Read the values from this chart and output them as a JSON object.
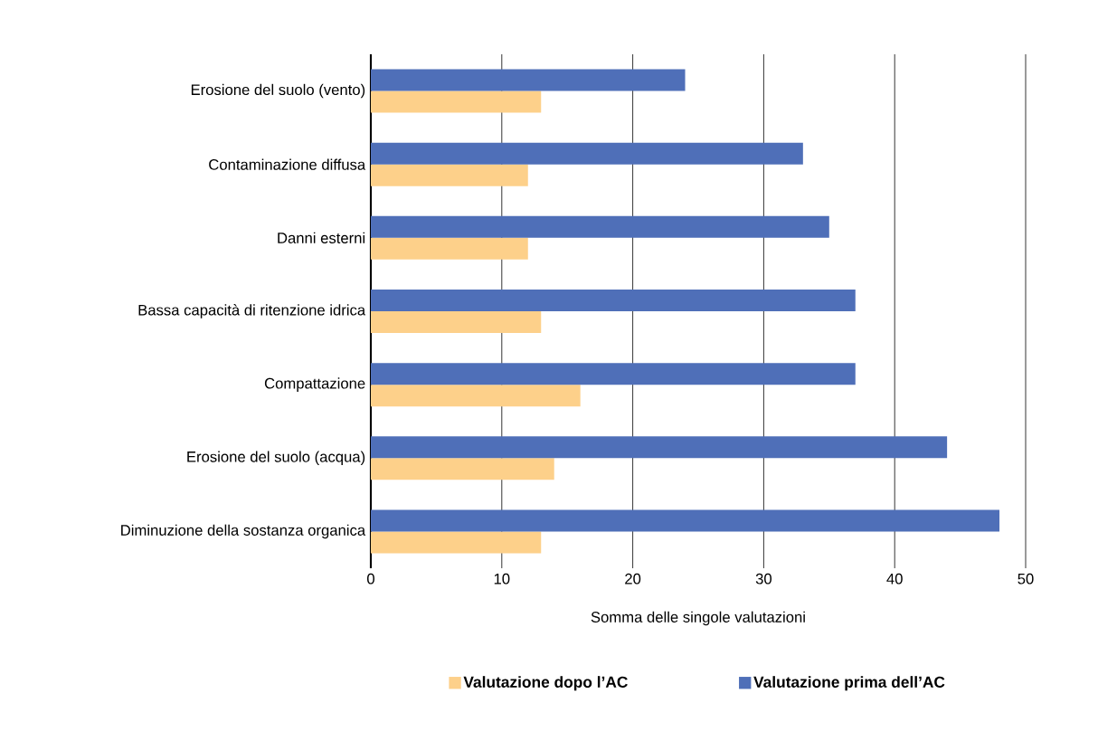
{
  "chart_data": {
    "type": "bar",
    "orientation": "horizontal",
    "xlabel": "Somma delle singole valutazioni",
    "categories": [
      "Erosione del suolo (vento)",
      "Contaminazione diffusa",
      "Danni esterni",
      "Bassa capacità di ritenzione idrica",
      "Compattazione",
      "Erosione del suolo (acqua)",
      "Diminuzione della sostanza organica"
    ],
    "series": [
      {
        "name": "Valutazione dopo l’AC",
        "color": "#fdd08a",
        "values": [
          13,
          12,
          12,
          13,
          16,
          14,
          13
        ]
      },
      {
        "name": "Valutazione prima dell’AC",
        "color": "#4f6fb8",
        "values": [
          24,
          33,
          35,
          37,
          37,
          44,
          48
        ]
      }
    ],
    "xlim": [
      0,
      50
    ],
    "xticks": [
      0,
      10,
      20,
      30,
      40,
      50
    ],
    "grid": "x",
    "legend": "bottom"
  }
}
